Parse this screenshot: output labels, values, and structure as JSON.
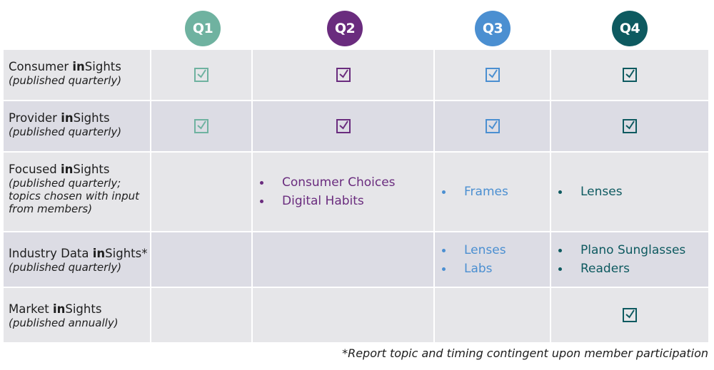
{
  "quarters": [
    {
      "label": "Q1",
      "color": "#6fb2a0"
    },
    {
      "label": "Q2",
      "color": "#6a2c7e"
    },
    {
      "label": "Q3",
      "color": "#4b8fd1"
    },
    {
      "label": "Q4",
      "color": "#0e5a60"
    }
  ],
  "rows": [
    {
      "name_pre": "Consumer ",
      "name_bold": "in",
      "name_post": "Sights",
      "sub": "(published quarterly)",
      "q1": "check",
      "q2": "check",
      "q3": "check",
      "q4": "check"
    },
    {
      "name_pre": "Provider ",
      "name_bold": "in",
      "name_post": "Sights",
      "sub": "(published quarterly)",
      "q1": "check",
      "q2": "check",
      "q3": "check",
      "q4": "check"
    },
    {
      "name_pre": "Focused ",
      "name_bold": "in",
      "name_post": "Sights",
      "sub": "(published quarterly; topics chosen with input from members)",
      "q2_items": [
        "Consumer Choices",
        "Digital Habits"
      ],
      "q3_items": [
        "Frames"
      ],
      "q4_items": [
        "Lenses"
      ]
    },
    {
      "name_pre": "Industry Data ",
      "name_bold": "in",
      "name_post": "Sights*",
      "sub": "(published quarterly)",
      "q3_items": [
        "Lenses",
        "Labs"
      ],
      "q4_items": [
        "Plano Sunglasses",
        "Readers"
      ]
    },
    {
      "name_pre": "Market ",
      "name_bold": "in",
      "name_post": "Sights",
      "sub": "(published annually)",
      "q4": "check"
    }
  ],
  "footnote": "*Report topic and timing contingent upon member participation"
}
